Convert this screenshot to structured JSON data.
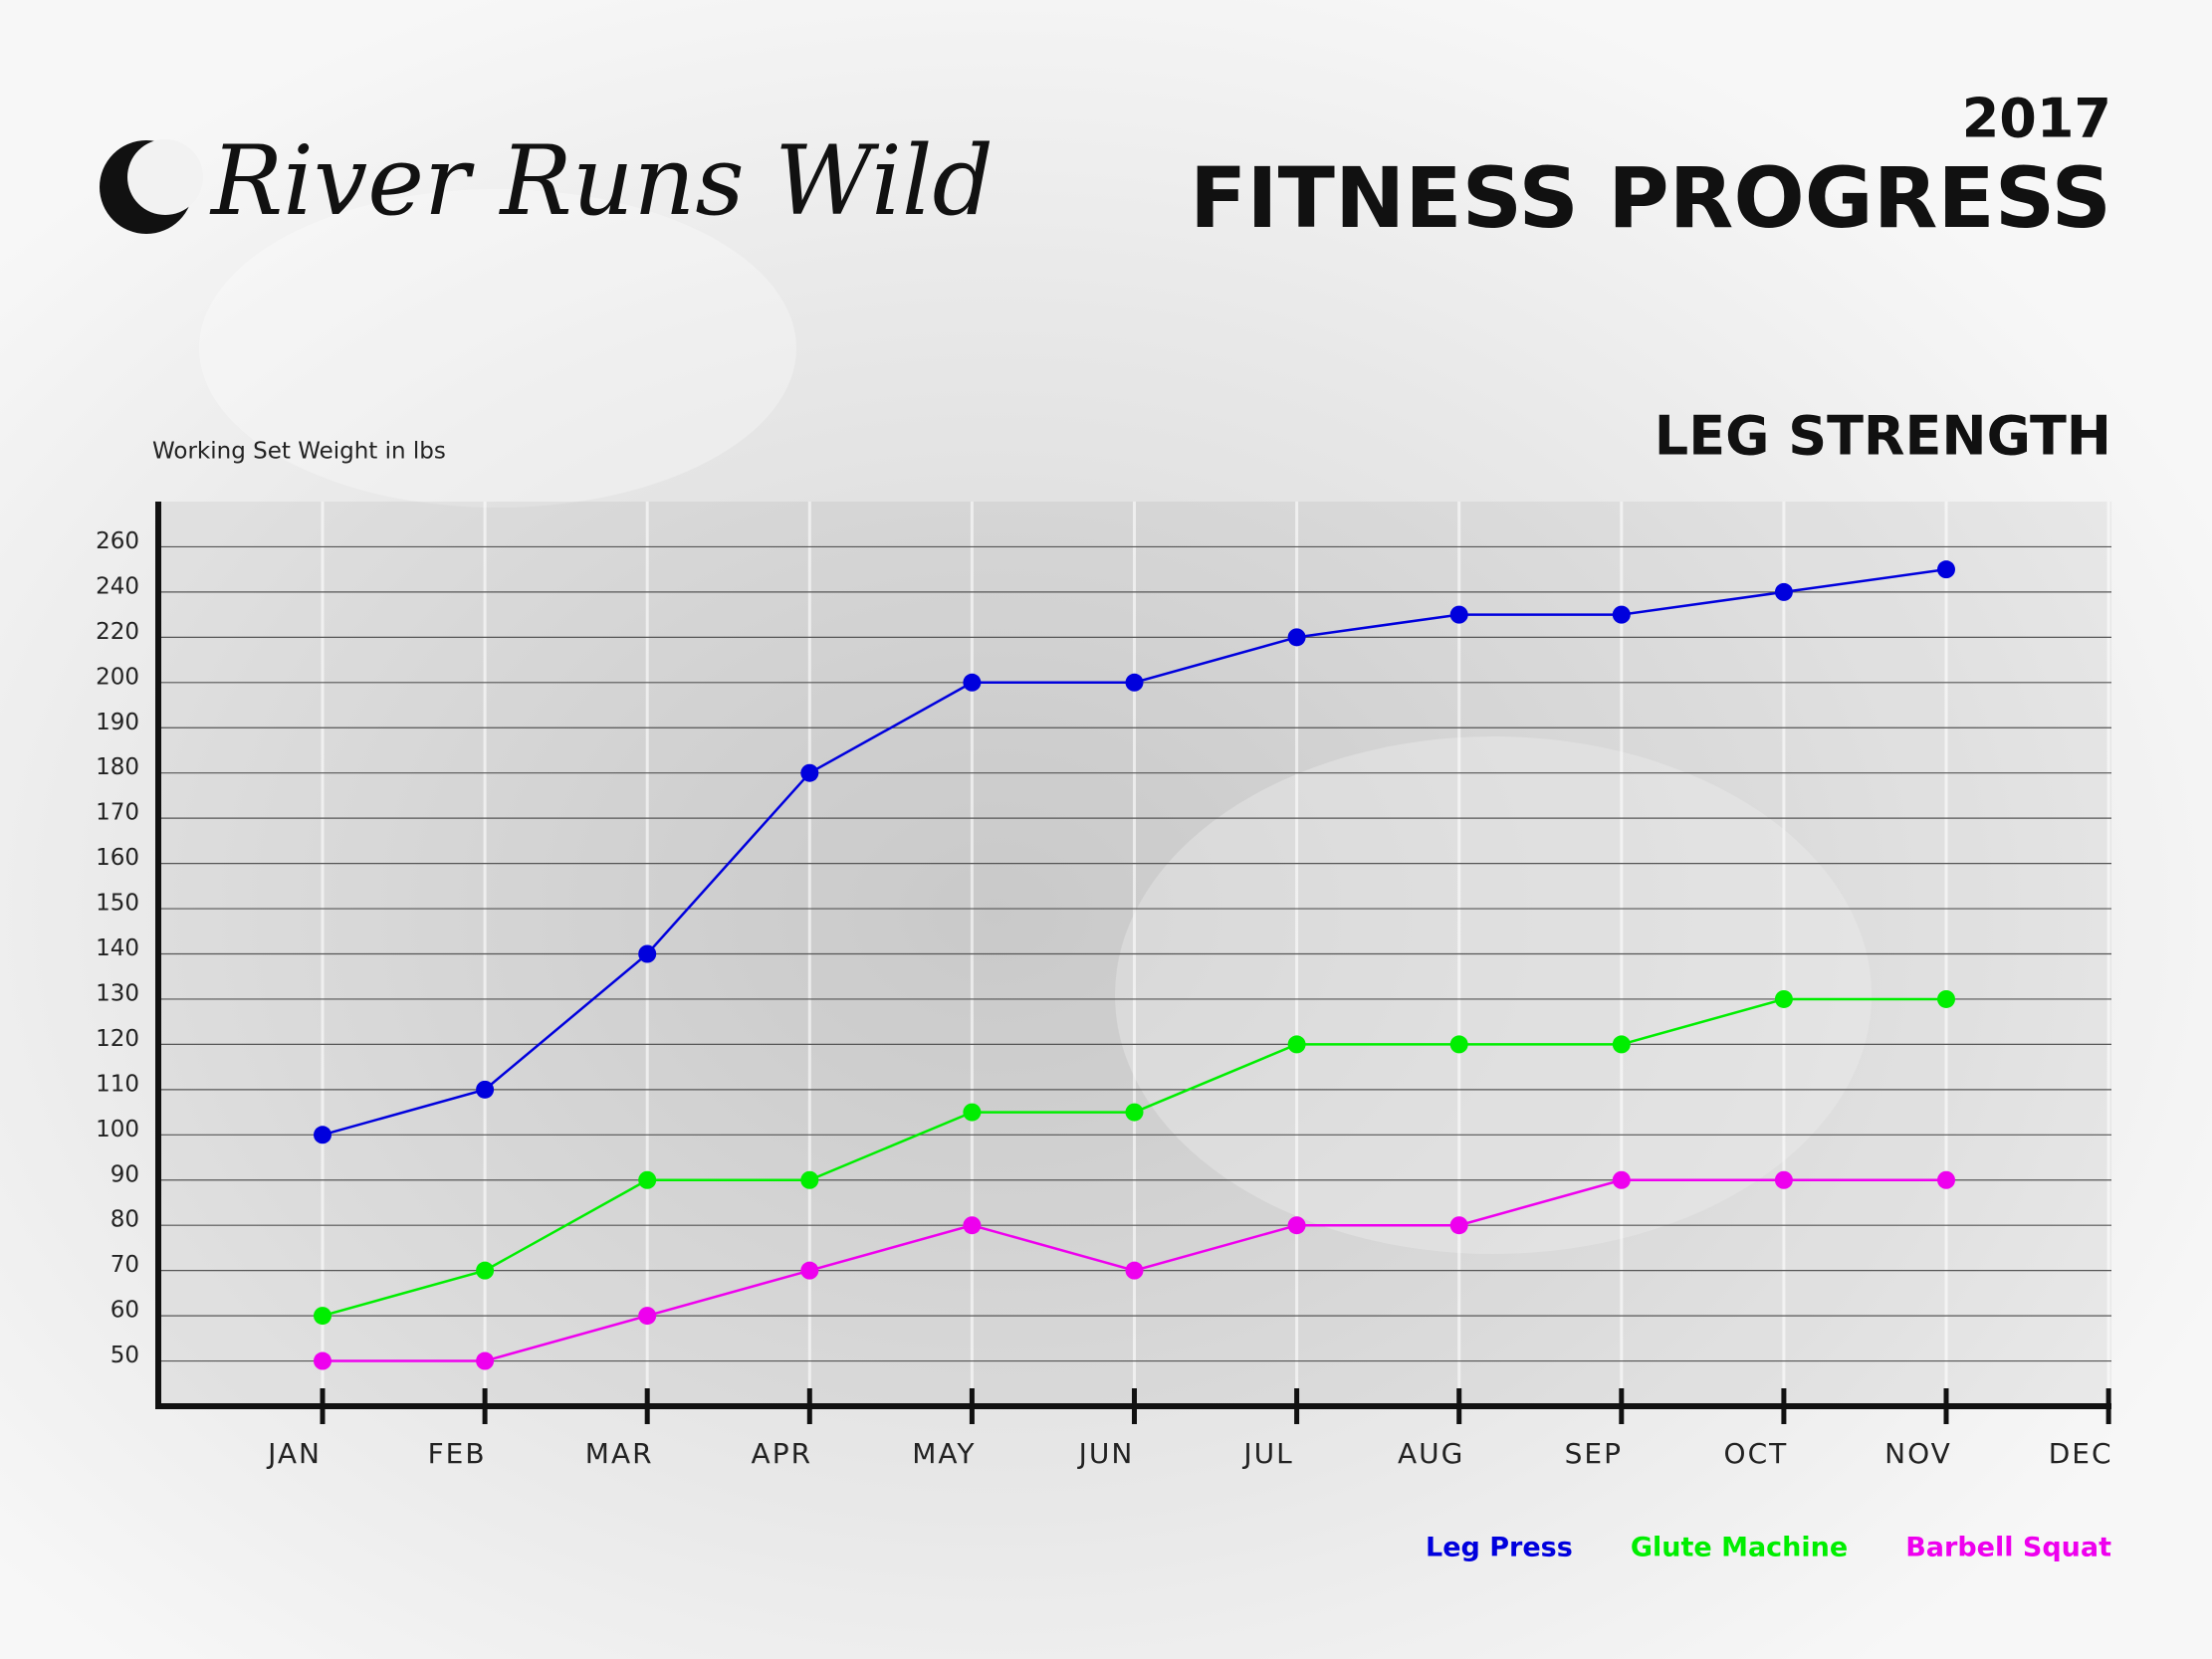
{
  "chart_data": {
    "type": "line",
    "brand": "River Runs Wild",
    "year_label": "2017",
    "title": "FITNESS PROGRESS",
    "subtitle": "LEG STRENGTH",
    "y_label": "Working Set Weight in lbs",
    "categories": [
      "JAN",
      "FEB",
      "MAR",
      "APR",
      "MAY",
      "JUN",
      "JUL",
      "AUG",
      "SEP",
      "OCT",
      "NOV",
      "DEC"
    ],
    "series": [
      {
        "name": "Leg Press",
        "color": "#0000dd",
        "values": [
          100,
          110,
          140,
          180,
          200,
          200,
          220,
          230,
          230,
          240,
          250,
          null
        ]
      },
      {
        "name": "Glute Machine",
        "color": "#00ee00",
        "values": [
          60,
          70,
          90,
          90,
          105,
          105,
          120,
          120,
          120,
          130,
          130,
          null
        ]
      },
      {
        "name": "Barbell Squat",
        "color": "#ee00ee",
        "values": [
          50,
          50,
          60,
          70,
          80,
          70,
          80,
          80,
          90,
          90,
          90,
          null
        ]
      }
    ],
    "ylim": [
      40,
      280
    ],
    "yticks": [
      50,
      60,
      70,
      80,
      90,
      100,
      110,
      120,
      130,
      140,
      150,
      160,
      170,
      180,
      190,
      200,
      220,
      240,
      260
    ],
    "grid": true
  }
}
